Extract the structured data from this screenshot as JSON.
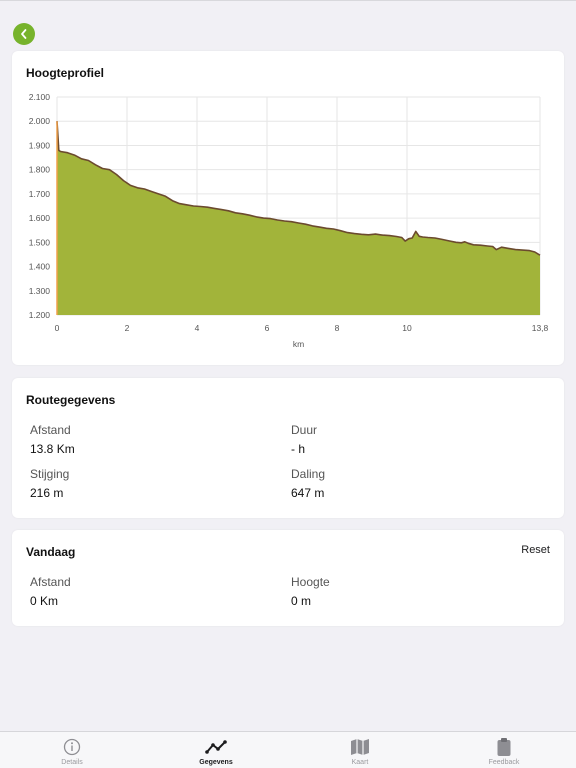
{
  "colors": {
    "accent_green": "#77b32c",
    "chart_fill": "#a2b43a",
    "chart_line": "#6b4a2e",
    "start_marker": "#f0a04b"
  },
  "header": {
    "back_icon": "chevron-left-icon"
  },
  "profile": {
    "title": "Hoogteprofiel"
  },
  "route": {
    "title": "Routegegevens",
    "distance_label": "Afstand",
    "distance_value": "13.8 Km",
    "duration_label": "Duur",
    "duration_value": "- h",
    "ascent_label": "Stijging",
    "ascent_value": "216 m",
    "descent_label": "Daling",
    "descent_value": "647 m"
  },
  "today": {
    "title": "Vandaag",
    "reset_label": "Reset",
    "distance_label": "Afstand",
    "distance_value": "0 Km",
    "height_label": "Hoogte",
    "height_value": "0 m"
  },
  "tabs": [
    {
      "label": "Details",
      "icon": "info-icon",
      "active": false
    },
    {
      "label": "Gegevens",
      "icon": "chart-line-icon",
      "active": true
    },
    {
      "label": "Kaart",
      "icon": "map-icon",
      "active": false
    },
    {
      "label": "Feedback",
      "icon": "clipboard-icon",
      "active": false
    }
  ],
  "chart_data": {
    "type": "area",
    "title": "Hoogteprofiel",
    "xlabel": "km",
    "ylabel": "",
    "xlim": [
      0,
      13.8
    ],
    "ylim": [
      1200,
      2100
    ],
    "grid": true,
    "x_ticks": [
      "0",
      "2",
      "4",
      "6",
      "8",
      "10",
      "13,8"
    ],
    "x_tick_values": [
      0,
      2,
      4,
      6,
      8,
      10,
      13.8
    ],
    "y_ticks": [
      "1.200",
      "1.300",
      "1.400",
      "1.500",
      "1.600",
      "1.700",
      "1.800",
      "1.900",
      "2.000",
      "2.100"
    ],
    "y_tick_values": [
      1200,
      1300,
      1400,
      1500,
      1600,
      1700,
      1800,
      1900,
      2000,
      2100
    ],
    "series": [
      {
        "x": [
          0,
          0.05,
          0.1,
          0.3,
          0.5,
          0.7,
          0.9,
          1.1,
          1.3,
          1.5,
          1.7,
          1.9,
          2.1,
          2.3,
          2.5,
          2.7,
          2.9,
          3.1,
          3.3,
          3.5,
          3.7,
          3.9,
          4.1,
          4.3,
          4.5,
          4.7,
          4.9,
          5.1,
          5.3,
          5.5,
          5.7,
          5.9,
          6.1,
          6.3,
          6.5,
          6.7,
          6.9,
          7.1,
          7.3,
          7.5,
          7.7,
          7.9,
          8.1,
          8.3,
          8.5,
          8.7,
          8.9,
          9.1,
          9.3,
          9.5,
          9.7,
          9.85,
          9.95,
          10.05,
          10.15,
          10.25,
          10.35,
          10.45,
          10.6,
          10.8,
          11.0,
          11.2,
          11.4,
          11.55,
          11.65,
          11.75,
          11.9,
          12.1,
          12.3,
          12.45,
          12.55,
          12.7,
          12.9,
          13.1,
          13.3,
          13.5,
          13.65,
          13.8
        ],
        "y": [
          2000,
          1880,
          1875,
          1870,
          1860,
          1845,
          1838,
          1820,
          1805,
          1800,
          1780,
          1755,
          1735,
          1725,
          1720,
          1710,
          1700,
          1690,
          1672,
          1660,
          1655,
          1650,
          1648,
          1645,
          1640,
          1635,
          1630,
          1622,
          1618,
          1612,
          1605,
          1600,
          1598,
          1592,
          1588,
          1585,
          1580,
          1575,
          1568,
          1563,
          1558,
          1555,
          1548,
          1540,
          1536,
          1533,
          1531,
          1534,
          1530,
          1528,
          1524,
          1520,
          1505,
          1515,
          1518,
          1545,
          1525,
          1522,
          1520,
          1518,
          1512,
          1506,
          1500,
          1498,
          1502,
          1496,
          1490,
          1488,
          1485,
          1483,
          1470,
          1480,
          1475,
          1470,
          1468,
          1466,
          1460,
          1447
        ]
      }
    ]
  }
}
